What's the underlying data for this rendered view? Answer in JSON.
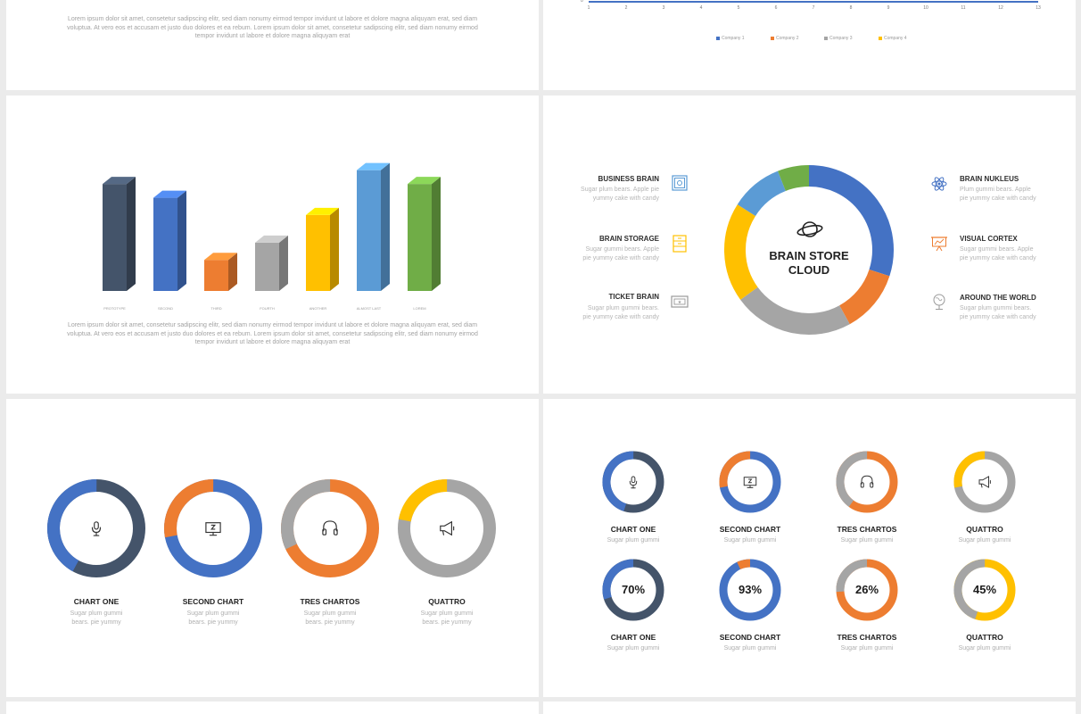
{
  "lorem": {
    "line1": "Lorem ipsum dolor sit amet, consetetur sadipscing elitr, sed diam nonumy eirmod tempor invidunt ut labore et dolore magna aliquyam erat, sed diam",
    "line2": "voluptua. At vero eos et accusam et justo duo dolores et ea rebum. Lorem ipsum dolor sit amet, consetetur sadipscing elitr, sed diam nonumy eirmod",
    "line3": "tempor invidunt ut labore et dolore magna aliquyam erat"
  },
  "line_chart_axis": {
    "x_ticks": [
      "1",
      "2",
      "3",
      "4",
      "5",
      "6",
      "7",
      "8",
      "9",
      "10",
      "11",
      "12",
      "13"
    ],
    "y_zero": "0",
    "legend": [
      "Company 1",
      "Company 2",
      "Company 3",
      "Company 4"
    ],
    "colors": [
      "#4472c4",
      "#ed7d31",
      "#a5a5a5",
      "#ffc000"
    ]
  },
  "chart_data": [
    {
      "type": "bar",
      "categories": [
        "PROTOTYPE",
        "SECOND",
        "THIRD",
        "FOURTH",
        "ANOTHER",
        "ALMOST LAST",
        "LOREM"
      ],
      "values": [
        62,
        54,
        18,
        28,
        44,
        70,
        62
      ],
      "colors": [
        "#44546a",
        "#4472c4",
        "#ed7d31",
        "#a5a5a5",
        "#ffc000",
        "#5b9bd5",
        "#70ad47"
      ],
      "title": "",
      "xlabel": "",
      "ylabel": "",
      "ylim": [
        0,
        75
      ]
    },
    {
      "type": "pie",
      "variant": "donut",
      "categories": [
        "Blue",
        "Orange",
        "Gray",
        "Yellow",
        "Light Blue",
        "Green"
      ],
      "values": [
        30,
        12,
        23,
        19,
        10,
        6
      ],
      "colors": [
        "#4472c4",
        "#ed7d31",
        "#a5a5a5",
        "#ffc000",
        "#5b9bd5",
        "#70ad47"
      ],
      "title": "BRAIN STORE CLOUD"
    }
  ],
  "cloud": {
    "title_line1": "BRAIN STORE",
    "title_line2": "CLOUD",
    "left": [
      {
        "title": "BUSINESS BRAIN",
        "d1": "Sugar plum bears. Apple pie",
        "d2": "yummy cake with candy",
        "icon": "safe-icon"
      },
      {
        "title": "BRAIN STORAGE",
        "d1": "Sugar gummi bears. Apple",
        "d2": "pie yummy cake with candy",
        "icon": "cabinet-icon"
      },
      {
        "title": "TICKET BRAIN",
        "d1": "Sugar plum gummi bears.",
        "d2": "pie yummy cake with candy",
        "icon": "ticket-icon"
      }
    ],
    "right": [
      {
        "title": "BRAIN NUKLEUS",
        "d1": "Plum gummi bears. Apple",
        "d2": "pie yummy cake with candy",
        "icon": "atom-icon"
      },
      {
        "title": "VISUAL CORTEX",
        "d1": "Sugar gummi bears. Apple",
        "d2": "pie yummy cake with candy",
        "icon": "presentation-icon"
      },
      {
        "title": "AROUND THE WORLD",
        "d1": "Sugar plum gummi bears.",
        "d2": "pie yummy cake with candy",
        "icon": "globe-icon"
      }
    ]
  },
  "donuts4": [
    {
      "label": "CHART ONE",
      "sub1": "Sugar plum gummi",
      "sub2": "bears. pie yummy",
      "value": 0.58,
      "main": "#44546a",
      "accent": "#4472c4",
      "icon": "microphone-icon"
    },
    {
      "label": "SECOND CHART",
      "sub1": "Sugar plum gummi",
      "sub2": "bears. pie yummy",
      "value": 0.72,
      "main": "#4472c4",
      "accent": "#ed7d31",
      "icon": "monitor-icon"
    },
    {
      "label": "TRES CHARTOS",
      "sub1": "Sugar plum gummi",
      "sub2": "bears. pie yummy",
      "value": 0.68,
      "main": "#ed7d31",
      "accent": "#a5a5a5",
      "icon": "headphones-icon"
    },
    {
      "label": "QUATTRO",
      "sub1": "Sugar plum gummi",
      "sub2": "bears. pie yummy",
      "value": 0.78,
      "main": "#a5a5a5",
      "accent": "#ffc000",
      "icon": "megaphone-icon"
    }
  ],
  "donuts8_top": [
    {
      "label": "CHART ONE",
      "sub": "Sugar plum gummi",
      "value": 0.55,
      "main": "#44546a",
      "accent": "#4472c4",
      "icon": "microphone-icon"
    },
    {
      "label": "SECOND CHART",
      "sub": "Sugar plum gummi",
      "value": 0.72,
      "main": "#4472c4",
      "accent": "#ed7d31",
      "icon": "monitor-icon"
    },
    {
      "label": "TRES CHARTOS",
      "sub": "Sugar plum gummi",
      "value": 0.6,
      "main": "#ed7d31",
      "accent": "#a5a5a5",
      "icon": "headphones-icon"
    },
    {
      "label": "QUATTRO",
      "sub": "Sugar plum gummi",
      "value": 0.72,
      "main": "#a5a5a5",
      "accent": "#ffc000",
      "icon": "megaphone-icon"
    }
  ],
  "donuts8_bottom": [
    {
      "label": "CHART ONE",
      "sub": "Sugar plum gummi",
      "value": 0.7,
      "pct": "70%",
      "main": "#44546a",
      "accent": "#4472c4"
    },
    {
      "label": "SECOND CHART",
      "sub": "Sugar plum gummi",
      "value": 0.93,
      "pct": "93%",
      "main": "#4472c4",
      "accent": "#ed7d31"
    },
    {
      "label": "TRES CHARTOS",
      "sub": "Sugar plum gummi",
      "value": 0.26,
      "pct": "26%",
      "main": "#a5a5a5",
      "accent": "#ed7d31",
      "invert": true
    },
    {
      "label": "QUATTRO",
      "sub": "Sugar plum gummi",
      "value": 0.45,
      "pct": "45%",
      "main": "#a5a5a5",
      "accent": "#ffc000",
      "invert": true
    }
  ]
}
